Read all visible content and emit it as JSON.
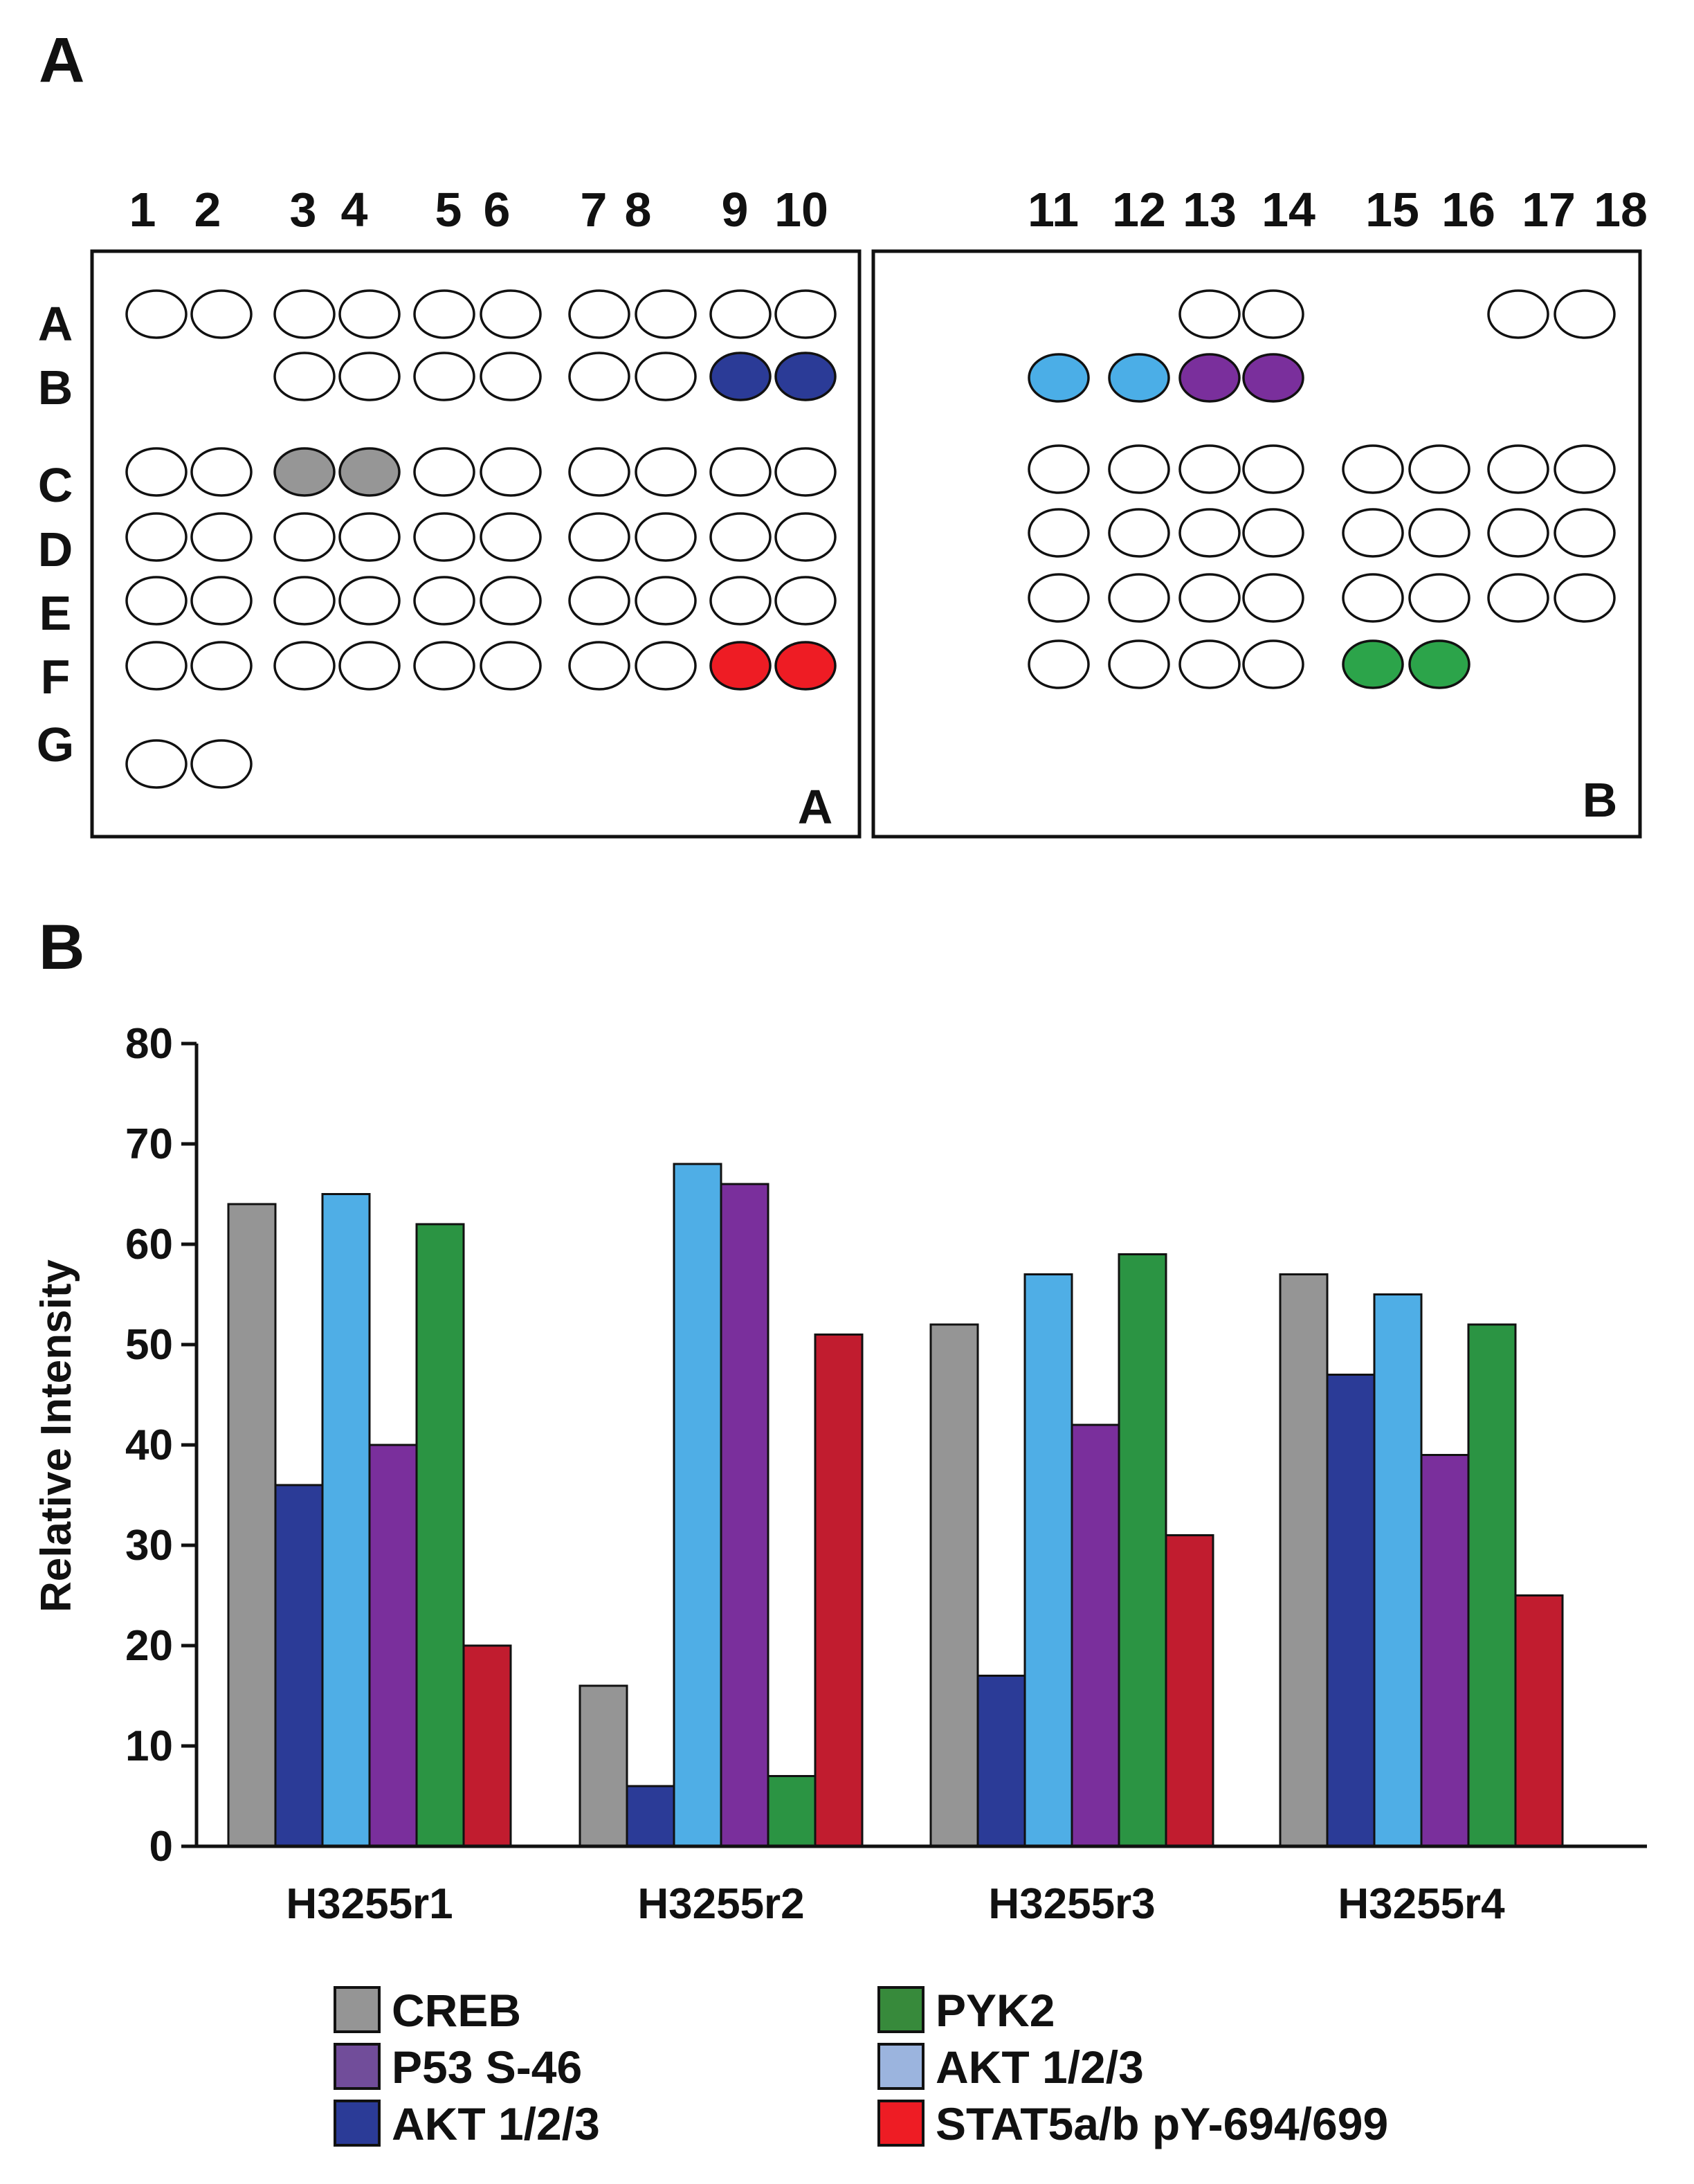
{
  "panels": {
    "a": "A",
    "b": "B"
  },
  "array": {
    "column_numbers": [
      "1",
      "2",
      "3",
      "4",
      "5",
      "6",
      "7",
      "8",
      "9",
      "10",
      "11",
      "12",
      "13",
      "14",
      "15",
      "16",
      "17",
      "18"
    ],
    "row_letters": [
      "A",
      "B",
      "C",
      "D",
      "E",
      "F",
      "G"
    ],
    "membranes": [
      {
        "label": "A",
        "rows": [
          {
            "row": "A",
            "spots": [
              "white",
              "white",
              "white",
              "white",
              "white",
              "white",
              "white",
              "white",
              "white",
              "white"
            ]
          },
          {
            "row": "B",
            "spots": [
              null,
              null,
              "white",
              "white",
              "white",
              "white",
              "white",
              "white",
              "dark-blue",
              "dark-blue"
            ]
          },
          {
            "row": "C",
            "spots": [
              "white",
              "white",
              "gray",
              "gray",
              "white",
              "white",
              "white",
              "white",
              "white",
              "white"
            ]
          },
          {
            "row": "D",
            "spots": [
              "white",
              "white",
              "white",
              "white",
              "white",
              "white",
              "white",
              "white",
              "white",
              "white"
            ]
          },
          {
            "row": "E",
            "spots": [
              "white",
              "white",
              "white",
              "white",
              "white",
              "white",
              "white",
              "white",
              "white",
              "white"
            ]
          },
          {
            "row": "F",
            "spots": [
              "white",
              "white",
              "white",
              "white",
              "white",
              "white",
              "white",
              "white",
              "red",
              "red"
            ]
          },
          {
            "row": "G",
            "spots": [
              "white",
              "white",
              null,
              null,
              null,
              null,
              null,
              null,
              null,
              null
            ]
          }
        ]
      },
      {
        "label": "B",
        "rows": [
          {
            "row": "A",
            "spots": [
              null,
              null,
              "white",
              "white",
              null,
              null,
              "white",
              "white"
            ]
          },
          {
            "row": "B",
            "spots": [
              "light-blue",
              "light-blue",
              "purple",
              "purple",
              null,
              null,
              null,
              null
            ]
          },
          {
            "row": "C",
            "spots": [
              "white",
              "white",
              "white",
              "white",
              "white",
              "white",
              "white",
              "white"
            ]
          },
          {
            "row": "D",
            "spots": [
              "white",
              "white",
              "white",
              "white",
              "white",
              "white",
              "white",
              "white"
            ]
          },
          {
            "row": "E",
            "spots": [
              "white",
              "white",
              "white",
              "white",
              "white",
              "white",
              "white",
              "white"
            ]
          },
          {
            "row": "F",
            "spots": [
              "white",
              "white",
              "white",
              "white",
              "green",
              "green",
              null,
              null
            ]
          }
        ]
      }
    ],
    "spot_colors": {
      "white": "#ffffff",
      "gray": "#969696",
      "dark-blue": "#2b3b97",
      "light-blue": "#4baee7",
      "purple": "#7a2f9c",
      "red": "#ee1c24",
      "green": "#2ca44a"
    }
  },
  "chart_data": {
    "type": "bar",
    "title": "",
    "xlabel": "",
    "ylabel": "Relative Intensity",
    "ylim": [
      0,
      80
    ],
    "yticks": [
      0,
      10,
      20,
      30,
      40,
      50,
      60,
      70,
      80
    ],
    "grid": false,
    "categories": [
      "H3255r1",
      "H3255r2",
      "H3255r3",
      "H3255r4"
    ],
    "series": [
      {
        "name": "CREB",
        "color": "#959595",
        "values": [
          64,
          16,
          52,
          57
        ]
      },
      {
        "name": "AKT 1/2/3",
        "color": "#2b3b97",
        "values": [
          36,
          6,
          17,
          47
        ]
      },
      {
        "name": "AKT 1/2/3",
        "color": "#4faee6",
        "values": [
          65,
          68,
          57,
          55
        ]
      },
      {
        "name": "P53 S-46",
        "color": "#7a2f9c",
        "values": [
          40,
          66,
          42,
          39
        ]
      },
      {
        "name": "PYK2",
        "color": "#2b9443",
        "values": [
          62,
          7,
          59,
          52
        ]
      },
      {
        "name": "STAT5a/b pY-694/699",
        "color": "#c11c2f",
        "values": [
          20,
          51,
          31,
          25
        ]
      }
    ],
    "legend": {
      "placement": "bottom",
      "entries": [
        {
          "label": "CREB",
          "color": "#959595"
        },
        {
          "label": "P53 S-46",
          "color": "#714d9a"
        },
        {
          "label": "AKT 1/2/3",
          "color": "#2b3b97"
        },
        {
          "label": "PYK2",
          "color": "#378a3b"
        },
        {
          "label": "AKT 1/2/3",
          "color": "#9bb4de"
        },
        {
          "label": "STAT5a/b pY-694/699",
          "color": "#ee1c24"
        }
      ]
    }
  }
}
